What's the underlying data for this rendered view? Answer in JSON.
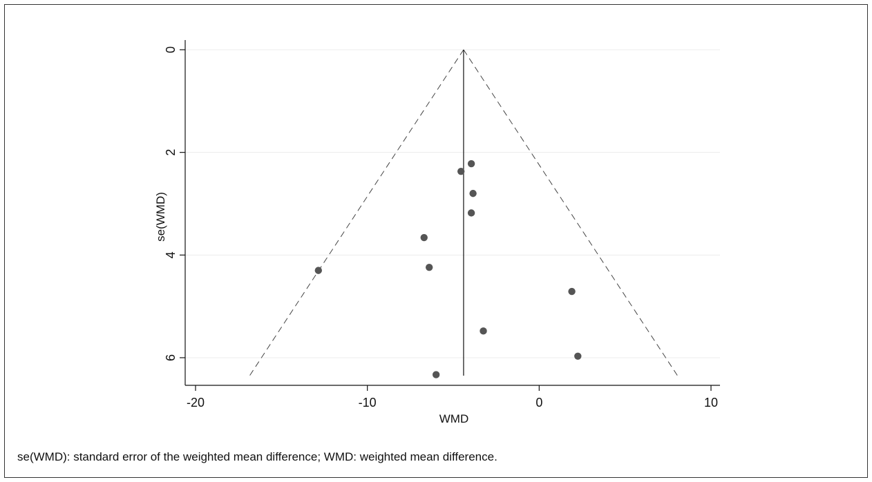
{
  "caption": "se(WMD): standard error of the weighted mean difference; WMD: weighted mean difference.",
  "chart_data": {
    "type": "scatter",
    "title": "",
    "xlabel": "WMD",
    "ylabel": "se(WMD)",
    "xlim": [
      -20.5,
      10.5
    ],
    "ylim": [
      6.55,
      -0.2
    ],
    "y_reversed": true,
    "x_ticks": [
      -20,
      -10,
      0,
      10
    ],
    "x_tick_labels": [
      "-20",
      "-10",
      "0",
      "10"
    ],
    "y_ticks": [
      0,
      2,
      4,
      6
    ],
    "y_tick_labels": [
      "0",
      "2",
      "4",
      "6"
    ],
    "grid": "horizontal",
    "pooled_estimate": -4.4,
    "pooled_line_max_se": 6.35,
    "pseudo_ci_limits": {
      "left": [
        [
          -4.4,
          0
        ],
        [
          -16.85,
          6.35
        ]
      ],
      "right": [
        [
          -4.4,
          0
        ],
        [
          8.05,
          6.35
        ]
      ]
    },
    "points": [
      {
        "x": -3.95,
        "y": 2.22
      },
      {
        "x": -4.55,
        "y": 2.37
      },
      {
        "x": -3.85,
        "y": 2.8
      },
      {
        "x": -3.95,
        "y": 3.18
      },
      {
        "x": -6.7,
        "y": 3.66
      },
      {
        "x": -6.4,
        "y": 4.24
      },
      {
        "x": -12.85,
        "y": 4.3
      },
      {
        "x": 1.9,
        "y": 4.71
      },
      {
        "x": -3.25,
        "y": 5.48
      },
      {
        "x": 2.25,
        "y": 5.97
      },
      {
        "x": -6.0,
        "y": 6.33
      }
    ],
    "colors": {
      "point": "#555555",
      "line": "#111111",
      "grid": "#ececec",
      "ci": "#444444"
    }
  }
}
